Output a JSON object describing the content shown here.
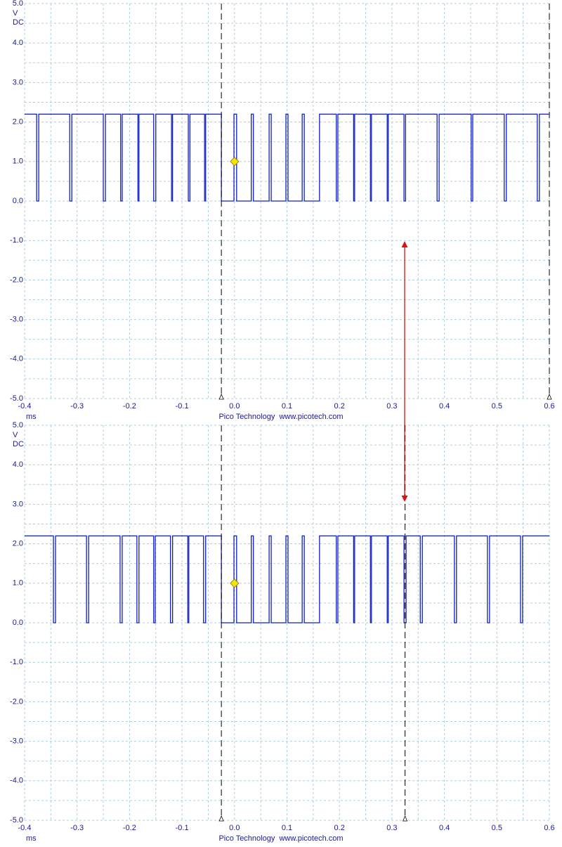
{
  "chart_data": [
    {
      "type": "line",
      "y_unit": "V",
      "coupling": "DC",
      "x_label": "ms",
      "footer": "Pico Technology  www.picotech.com",
      "color": "#1020c0",
      "grid": true,
      "xlim": [
        -0.4,
        0.6
      ],
      "ylim": [
        -5,
        5
      ],
      "xticks": [
        -0.4,
        -0.3,
        -0.2,
        -0.1,
        {
          "value": 0,
          "label": "0.0"
        },
        0.1,
        0.2,
        0.3,
        0.4,
        0.5,
        0.6
      ],
      "yticks": [
        {
          "value": 5,
          "label": "5.0"
        },
        {
          "value": 4,
          "label": "4.0"
        },
        {
          "value": 3,
          "label": "3.0"
        },
        {
          "value": 2,
          "label": "2.0"
        },
        {
          "value": 1,
          "label": "1.0"
        },
        {
          "value": 0,
          "label": "0.0"
        },
        {
          "value": -1,
          "label": "-1.0"
        },
        {
          "value": -2,
          "label": "-2.0"
        },
        {
          "value": -3,
          "label": "-3.0"
        },
        {
          "value": -4,
          "label": "-4.0"
        },
        {
          "value": -5,
          "label": "-5.0"
        }
      ],
      "cursors": [
        -0.025,
        0.6
      ],
      "trigger": {
        "x": 0,
        "y": 1
      },
      "x": [
        -0.4,
        -0.377,
        -0.377,
        -0.373,
        -0.373,
        -0.314,
        -0.314,
        -0.31,
        -0.31,
        -0.25,
        -0.25,
        -0.246,
        -0.246,
        -0.217,
        -0.217,
        -0.214,
        -0.214,
        -0.184,
        -0.184,
        -0.182,
        -0.182,
        -0.154,
        -0.154,
        -0.15,
        -0.15,
        -0.12,
        -0.12,
        -0.118,
        -0.118,
        -0.088,
        -0.088,
        -0.085,
        -0.085,
        -0.057,
        -0.057,
        -0.055,
        -0.055,
        -0.025,
        -0.025,
        -0.001,
        -0.001,
        0.004,
        0.004,
        0.032,
        0.032,
        0.036,
        0.036,
        0.066,
        0.066,
        0.07,
        0.07,
        0.098,
        0.098,
        0.102,
        0.102,
        0.129,
        0.129,
        0.133,
        0.133,
        0.162,
        0.162,
        0.194,
        0.194,
        0.197,
        0.197,
        0.227,
        0.227,
        0.229,
        0.229,
        0.259,
        0.259,
        0.261,
        0.261,
        0.291,
        0.291,
        0.293,
        0.293,
        0.323,
        0.323,
        0.326,
        0.326,
        0.386,
        0.386,
        0.39,
        0.39,
        0.451,
        0.451,
        0.454,
        0.454,
        0.514,
        0.514,
        0.518,
        0.518,
        0.577,
        0.577,
        0.581,
        0.581,
        0.6
      ],
      "values": [
        2.2,
        2.2,
        0,
        0,
        2.2,
        2.2,
        0,
        0,
        2.2,
        2.2,
        0,
        0,
        2.2,
        2.2,
        0,
        0,
        2.2,
        2.2,
        0,
        0,
        2.2,
        2.2,
        0,
        0,
        2.2,
        2.2,
        0,
        0,
        2.2,
        2.2,
        0,
        0,
        2.2,
        2.2,
        0,
        0,
        2.2,
        2.2,
        0,
        0,
        2.2,
        2.2,
        0,
        0,
        2.2,
        2.2,
        0,
        0,
        2.2,
        2.2,
        0,
        0,
        2.2,
        2.2,
        0,
        0,
        2.2,
        2.2,
        0,
        0,
        2.2,
        2.2,
        0,
        0,
        2.2,
        2.2,
        0,
        0,
        2.2,
        2.2,
        0,
        0,
        2.2,
        2.2,
        0,
        0,
        2.2,
        2.2,
        0,
        0,
        2.2,
        2.2,
        0,
        0,
        2.2,
        2.2,
        0,
        0,
        2.2,
        2.2,
        0,
        0,
        2.2,
        2.2,
        0,
        0,
        2.2,
        2.2
      ]
    },
    {
      "type": "line",
      "y_unit": "V",
      "coupling": "DC",
      "x_label": "ms",
      "footer": "Pico Technology  www.picotech.com",
      "color": "#1020c0",
      "grid": true,
      "xlim": [
        -0.4,
        0.6
      ],
      "ylim": [
        -5,
        5
      ],
      "xticks": [
        -0.4,
        -0.3,
        -0.2,
        -0.1,
        {
          "value": 0,
          "label": "0.0"
        },
        0.1,
        0.2,
        0.3,
        0.4,
        0.5,
        0.6
      ],
      "yticks": [
        {
          "value": 5,
          "label": "5.0"
        },
        {
          "value": 4,
          "label": "4.0"
        },
        {
          "value": 3,
          "label": "3.0"
        },
        {
          "value": 2,
          "label": "2.0"
        },
        {
          "value": 1,
          "label": "1.0"
        },
        {
          "value": 0,
          "label": "0.0"
        },
        {
          "value": -1,
          "label": "-1.0"
        },
        {
          "value": -2,
          "label": "-2.0"
        },
        {
          "value": -3,
          "label": "-3.0"
        },
        {
          "value": -4,
          "label": "-4.0"
        },
        {
          "value": -5,
          "label": "-5.0"
        }
      ],
      "cursors": [
        -0.025,
        0.325
      ],
      "trigger": {
        "x": 0,
        "y": 1
      },
      "x": [
        -0.4,
        -0.345,
        -0.345,
        -0.341,
        -0.341,
        -0.282,
        -0.282,
        -0.278,
        -0.278,
        -0.218,
        -0.218,
        -0.214,
        -0.214,
        -0.186,
        -0.186,
        -0.182,
        -0.182,
        -0.154,
        -0.154,
        -0.151,
        -0.151,
        -0.122,
        -0.122,
        -0.118,
        -0.118,
        -0.089,
        -0.089,
        -0.087,
        -0.087,
        -0.059,
        -0.059,
        -0.055,
        -0.055,
        -0.025,
        -0.025,
        -0.001,
        -0.001,
        0.004,
        0.004,
        0.032,
        0.032,
        0.036,
        0.036,
        0.066,
        0.066,
        0.07,
        0.07,
        0.098,
        0.098,
        0.102,
        0.102,
        0.129,
        0.129,
        0.133,
        0.133,
        0.162,
        0.162,
        0.194,
        0.194,
        0.197,
        0.197,
        0.227,
        0.227,
        0.229,
        0.229,
        0.259,
        0.259,
        0.261,
        0.261,
        0.291,
        0.291,
        0.293,
        0.293,
        0.323,
        0.323,
        0.327,
        0.327,
        0.354,
        0.354,
        0.358,
        0.358,
        0.419,
        0.419,
        0.423,
        0.423,
        0.482,
        0.482,
        0.486,
        0.486,
        0.545,
        0.545,
        0.549,
        0.549,
        0.6
      ],
      "values": [
        2.2,
        2.2,
        0,
        0,
        2.2,
        2.2,
        0,
        0,
        2.2,
        2.2,
        0,
        0,
        2.2,
        2.2,
        0,
        0,
        2.2,
        2.2,
        0,
        0,
        2.2,
        2.2,
        0,
        0,
        2.2,
        2.2,
        0,
        0,
        2.2,
        2.2,
        0,
        0,
        2.2,
        2.2,
        0,
        0,
        2.2,
        2.2,
        0,
        0,
        2.2,
        2.2,
        0,
        0,
        2.2,
        2.2,
        0,
        0,
        2.2,
        2.2,
        0,
        0,
        2.2,
        2.2,
        0,
        0,
        2.2,
        2.2,
        0,
        0,
        2.2,
        2.2,
        0,
        0,
        2.2,
        2.2,
        0,
        0,
        2.2,
        2.2,
        0,
        0,
        2.2,
        2.2,
        0,
        0,
        2.2,
        2.2,
        0,
        0,
        2.2,
        2.2,
        0,
        0,
        2.2,
        2.2,
        0,
        0,
        2.2,
        2.2,
        0,
        0,
        2.2,
        2.2
      ]
    }
  ]
}
